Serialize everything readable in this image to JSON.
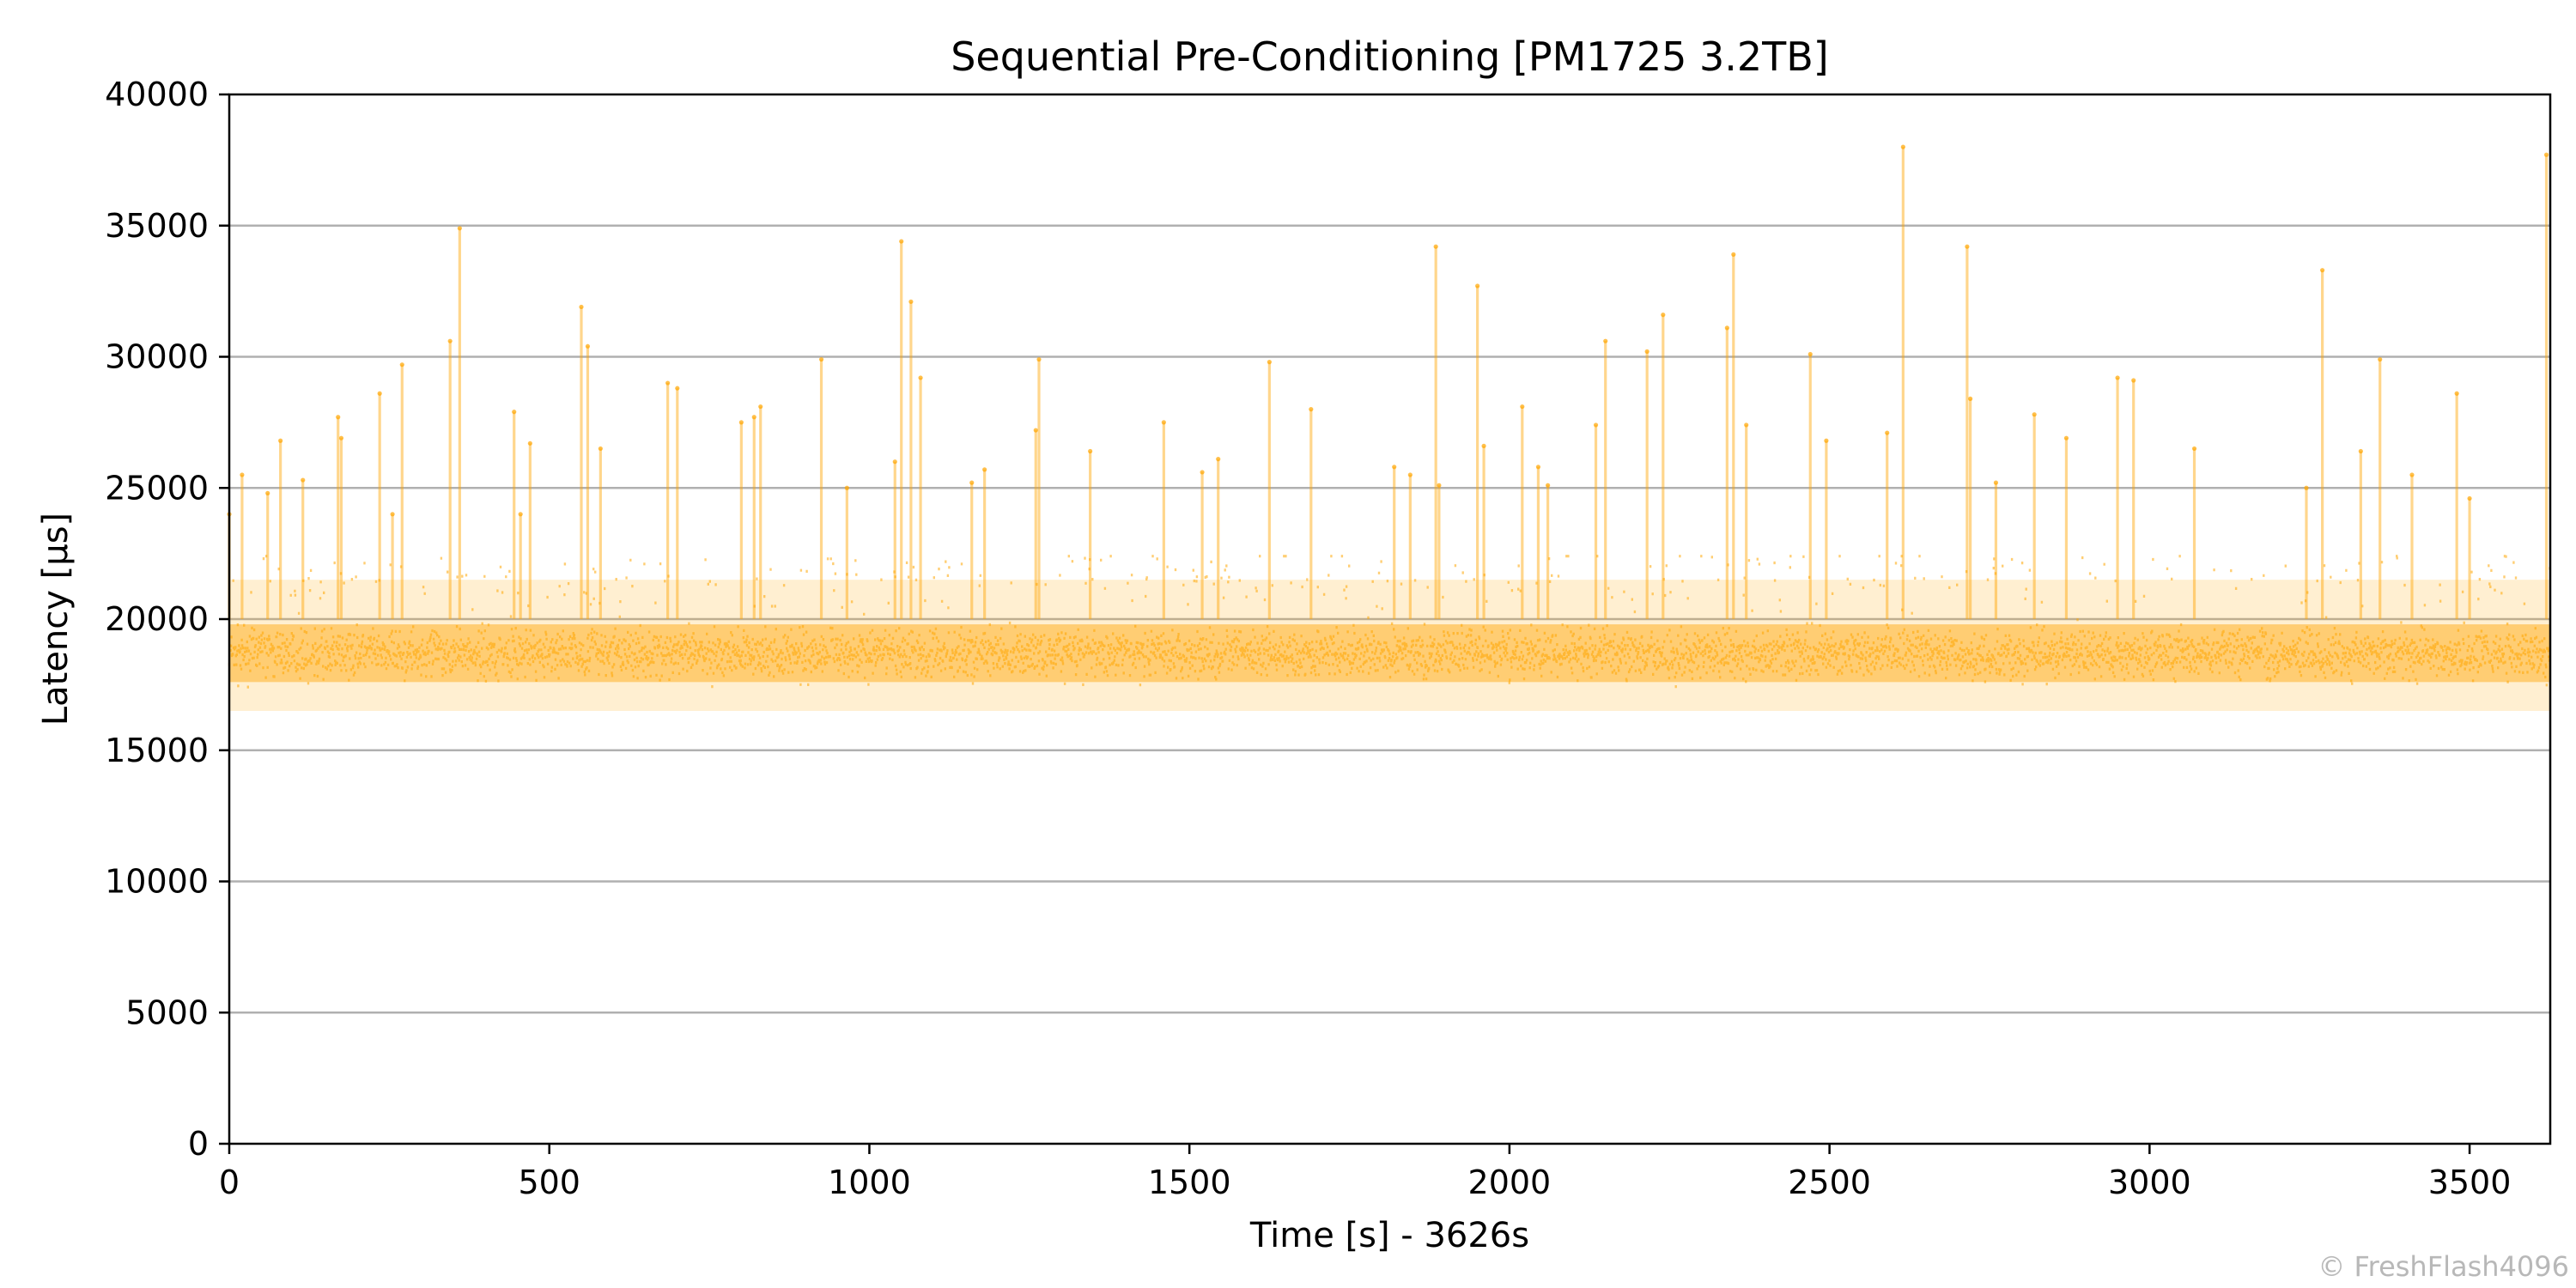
{
  "chart_data": {
    "type": "scatter",
    "title": "Sequential Pre-Conditioning [PM1725 3.2TB]",
    "xlabel": "Time [s] - 3626s",
    "ylabel": "Latency [µs]",
    "xlim": [
      0,
      3626
    ],
    "ylim": [
      0,
      40000
    ],
    "xticks": [
      0,
      500,
      1000,
      1500,
      2000,
      2500,
      3000,
      3500
    ],
    "yticks": [
      0,
      5000,
      10000,
      15000,
      20000,
      25000,
      30000,
      35000,
      40000
    ],
    "grid": "horizontal",
    "color": "#FFA500",
    "baseline": {
      "median_us": 18700,
      "min_us": 16500,
      "typical_max_us": 21500
    },
    "series": [
      {
        "x": [
          0,
          20,
          60,
          80,
          115,
          170,
          175,
          235,
          255,
          270,
          345,
          360,
          445,
          455,
          470,
          550,
          560,
          580,
          685,
          700,
          800,
          820,
          830,
          925,
          965,
          1040,
          1050,
          1065,
          1080,
          1160,
          1180,
          1260,
          1265,
          1345,
          1460,
          1520,
          1545,
          1625,
          1690,
          1820,
          1845,
          1885,
          1890,
          1950,
          1960,
          2020,
          2045,
          2060,
          2135,
          2150,
          2215,
          2240,
          2340,
          2350,
          2370,
          2470,
          2495,
          2590,
          2615,
          2715,
          2720,
          2760,
          2820,
          2870,
          2950,
          2975,
          3070,
          3245,
          3270,
          3330,
          3360,
          3410,
          3480,
          3500,
          3620
        ],
        "y": [
          24000,
          25500,
          24800,
          26800,
          25300,
          27700,
          26900,
          28600,
          24000,
          29700,
          30600,
          34900,
          27900,
          24000,
          26700,
          31900,
          30400,
          26500,
          29000,
          28800,
          27500,
          27700,
          28100,
          29900,
          25000,
          26000,
          34400,
          32100,
          29200,
          25200,
          25700,
          27200,
          29900,
          26400,
          27500,
          25600,
          26100,
          29800,
          28000,
          25800,
          25500,
          34200,
          25100,
          32700,
          26600,
          28100,
          25800,
          25100,
          27400,
          30600,
          30200,
          31600,
          31100,
          33900,
          27400,
          30100,
          26800,
          27100,
          38000,
          34200,
          28400,
          25200,
          27800,
          26900,
          29200,
          29100,
          26500,
          25000,
          33300,
          26400,
          29900,
          25500,
          28600,
          24600,
          37700
        ]
      }
    ]
  },
  "watermark": "© FreshFlash4096"
}
